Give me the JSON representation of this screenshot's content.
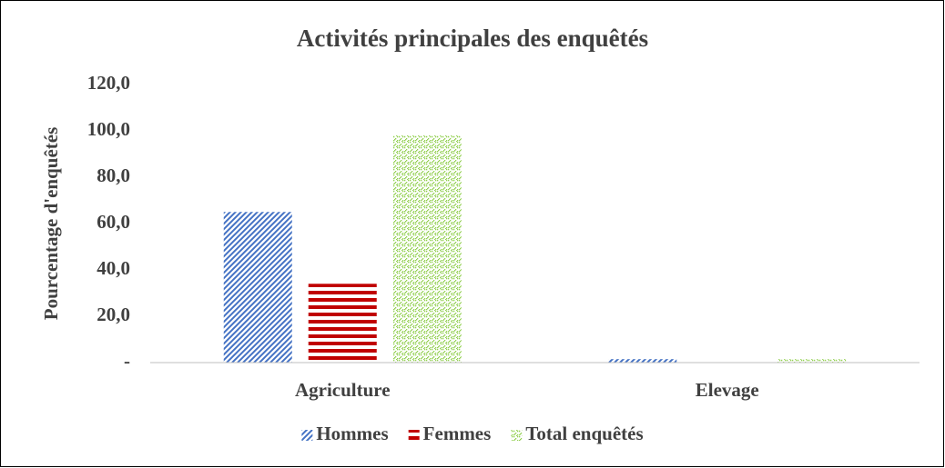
{
  "chart_data": {
    "type": "bar",
    "title": "Activités principales des enquêtés",
    "y_label": "Pourcentage d'enquêtés",
    "categories": [
      "Agriculture",
      "Elevage"
    ],
    "series": [
      {
        "name": "Hommes",
        "color": "#4472c4",
        "pattern": "diagonal",
        "values": [
          65,
          1.5
        ]
      },
      {
        "name": "Femmes",
        "color": "#c00000",
        "pattern": "horizontal",
        "values": [
          34,
          0
        ]
      },
      {
        "name": "Total enquêtés",
        "color": "#92d050",
        "pattern": "dotted",
        "values": [
          98,
          1.5
        ]
      }
    ],
    "ylim": [
      0,
      120
    ],
    "yticks": [
      {
        "value": 0,
        "label": "-"
      },
      {
        "value": 20,
        "label": "20,0"
      },
      {
        "value": 40,
        "label": "40,0"
      },
      {
        "value": 60,
        "label": "60,0"
      },
      {
        "value": 80,
        "label": "80,0"
      },
      {
        "value": 100,
        "label": "100,0"
      },
      {
        "value": 120,
        "label": "120,0"
      }
    ],
    "grid": false,
    "legend": "bottom"
  }
}
